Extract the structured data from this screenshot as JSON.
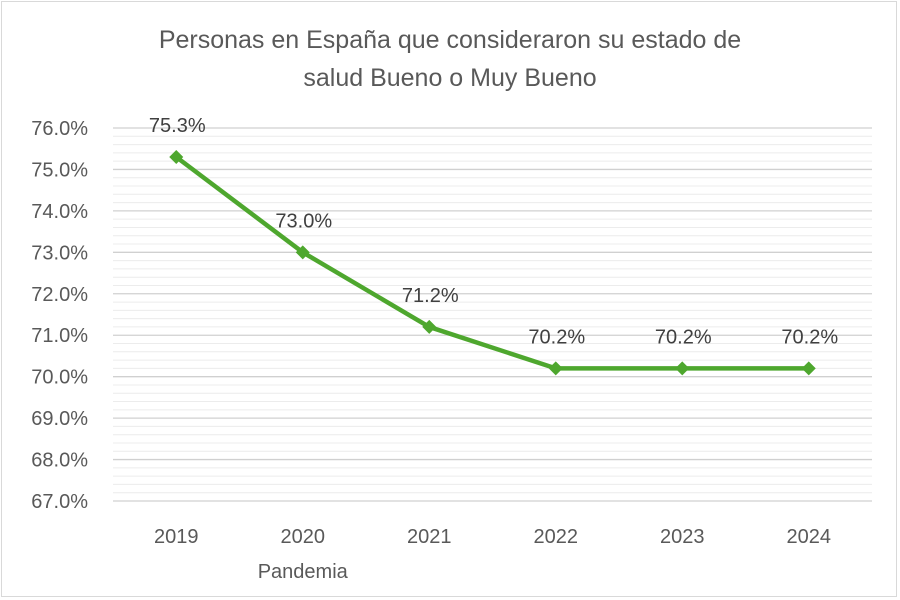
{
  "chart_data": {
    "type": "line",
    "title_lines": [
      "Personas en España que consideraron su estado de",
      "salud Bueno o Muy Bueno"
    ],
    "categories": [
      "2019",
      "2020",
      "2021",
      "2022",
      "2023",
      "2024"
    ],
    "category_sublabels": [
      "",
      "Pandemia",
      "",
      "",
      "",
      ""
    ],
    "values": [
      75.3,
      73.0,
      71.2,
      70.2,
      70.2,
      70.2
    ],
    "data_labels": [
      "75.3%",
      "73.0%",
      "71.2%",
      "70.2%",
      "70.2%",
      "70.2%"
    ],
    "ylim": [
      67,
      76
    ],
    "yticks": [
      "67.0%",
      "68.0%",
      "69.0%",
      "70.0%",
      "71.0%",
      "72.0%",
      "73.0%",
      "74.0%",
      "75.0%",
      "76.0%"
    ],
    "grid": {
      "major": true,
      "minor": true,
      "minor_step": 0.2
    },
    "legend": "none",
    "marker": "diamond",
    "colors": {
      "series": "#4ea72e",
      "grid": "#d9d9d9",
      "text": "#595959"
    }
  }
}
